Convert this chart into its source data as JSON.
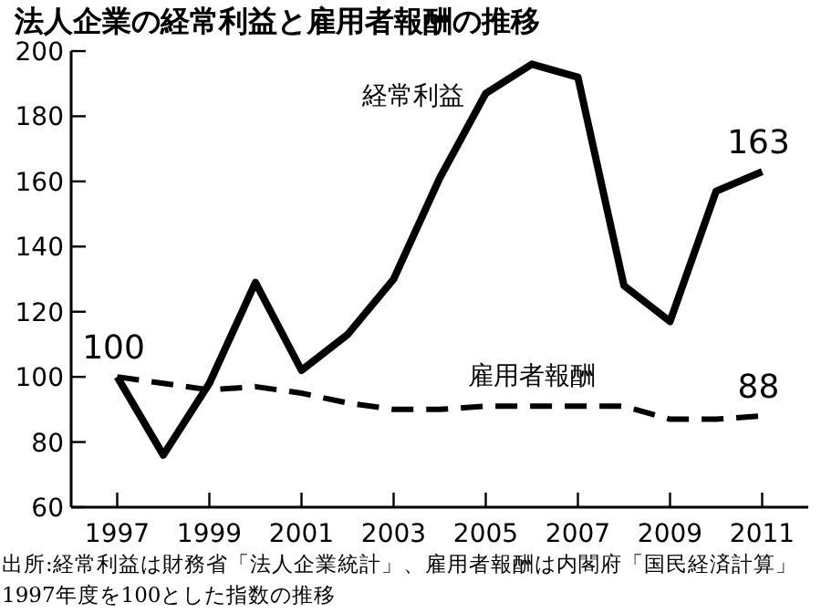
{
  "chart_data": {
    "type": "line",
    "title": "法人企業の経常利益と雇用者報酬の推移",
    "x": [
      1997,
      1998,
      1999,
      2000,
      2001,
      2002,
      2003,
      2004,
      2005,
      2006,
      2007,
      2008,
      2009,
      2010,
      2011
    ],
    "series": [
      {
        "name": "経常利益",
        "color": "#000000",
        "line_style": "solid",
        "values": [
          100,
          76,
          98,
          129,
          102,
          113,
          130,
          161,
          187,
          196,
          192,
          128,
          117,
          157,
          163
        ],
        "value_labels": [
          "100",
          null,
          null,
          null,
          null,
          null,
          null,
          null,
          null,
          null,
          null,
          null,
          null,
          null,
          "163"
        ]
      },
      {
        "name": "雇用者報酬",
        "color": "#000000",
        "line_style": "dashed",
        "values": [
          100,
          98,
          96,
          97,
          95,
          92,
          90,
          90,
          91,
          91,
          91,
          91,
          87,
          87,
          88
        ],
        "value_labels": [
          null,
          null,
          null,
          null,
          null,
          null,
          null,
          null,
          null,
          null,
          null,
          null,
          null,
          null,
          "88"
        ]
      }
    ],
    "xlim": [
      1996,
      2012
    ],
    "xticks": [
      1997,
      1999,
      2001,
      2003,
      2005,
      2007,
      2009,
      2011
    ],
    "ylim": [
      60,
      200
    ],
    "yticks": [
      60,
      80,
      100,
      120,
      140,
      160,
      180,
      200
    ],
    "grid": false,
    "legend": false,
    "marker": "none",
    "annotations": [
      "出所:経常利益は財務省「法人企業統計」、雇用者報酬は内閣府「国民経済計算」",
      "1997年度を100とした指数の推移"
    ]
  }
}
